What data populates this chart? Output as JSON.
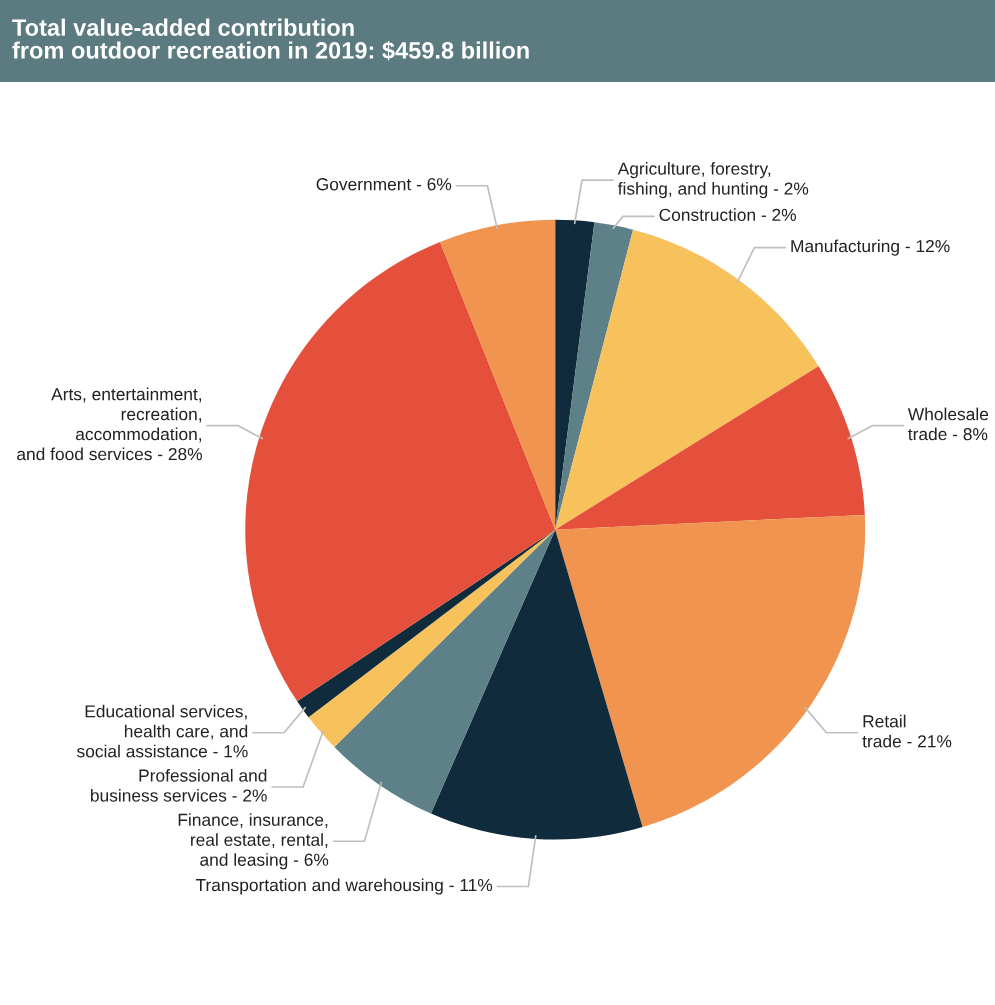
{
  "chart_data": {
    "type": "pie",
    "title": "Total value-added contribution\nfrom outdoor recreation in 2019: $459.8 billion",
    "categories": [
      "Agriculture, forestry,\nfishing, and hunting - 2%",
      "Construction - 2%",
      "Manufacturing - 12%",
      "Wholesale\ntrade - 8%",
      "Retail\ntrade - 21%",
      "Transportation and warehousing - 11%",
      "Finance, insurance,\nreal estate, rental,\nand leasing - 6%",
      "Professional and\nbusiness services - 2%",
      "Educational services,\nhealth care, and\nsocial assistance - 1%",
      "Arts, entertainment,\nrecreation,\naccommodation,\nand food services - 28%",
      "Government - 6%"
    ],
    "values": [
      2,
      2,
      12,
      8,
      21,
      11,
      6,
      2,
      1,
      28,
      6
    ],
    "colors": [
      "#0f2b3c",
      "#5e8088",
      "#f7c15c",
      "#e5503c",
      "#f0944f",
      "#0f2b3c",
      "#5e8088",
      "#f7c15c",
      "#0f2b3c",
      "#e5503c",
      "#f0944f"
    ]
  }
}
